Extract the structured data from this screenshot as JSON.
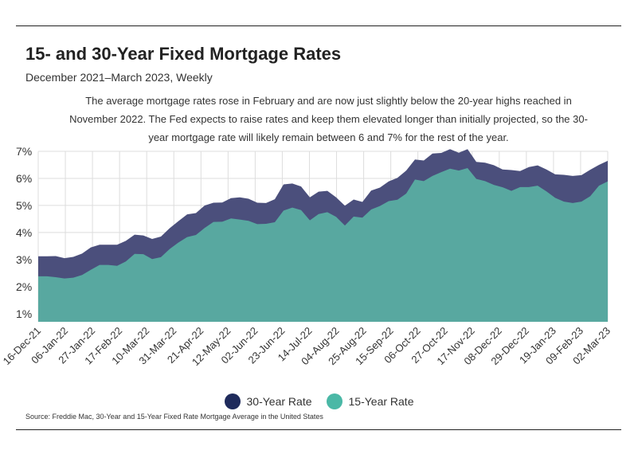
{
  "header": {
    "title": "15- and 30-Year Fixed Mortgage Rates",
    "subtitle": "December 2021–March 2023, Weekly",
    "note": "The average mortgage rates rose in February and are now just slightly below the 20-year highs reached in November 2022. The Fed expects to raise rates and keep them elevated longer than initially projected, so the 30-year mortgage rate will likely remain between 6 and 7% for the rest of the year."
  },
  "footer": {
    "source": "Source:  Freddie Mac, 30-Year  and 15-Year Fixed Rate Mortgage Average in the United States"
  },
  "colors": {
    "series_30": "#4b4f7c",
    "series_15": "#58a8a0",
    "legend_30": "#1f2b5c",
    "legend_15": "#4ab8a6",
    "grid": "#dddddd"
  },
  "chart_data": {
    "type": "area",
    "title": "15- and 30-Year Fixed Mortgage Rates",
    "xlabel": "",
    "ylabel": "",
    "ylim": [
      0.7,
      7.0
    ],
    "yticks": [
      1,
      2,
      3,
      4,
      5,
      6,
      7
    ],
    "ytick_labels": [
      "1%",
      "2%",
      "3%",
      "4%",
      "5%",
      "6%",
      "7%"
    ],
    "grid": true,
    "legend_position": "bottom",
    "xtick_labels": [
      "16-Dec-21",
      "06-Jan-22",
      "27-Jan-22",
      "17-Feb-22",
      "10-Mar-22",
      "31-Mar-22",
      "21-Apr-22",
      "12-May-22",
      "02-Jun-22",
      "23-Jun-22",
      "14-Jul-22",
      "04-Aug-22",
      "25-Aug-22",
      "15-Sep-22",
      "06-Oct-22",
      "27-Oct-22",
      "17-Nov-22",
      "08-Dec-22",
      "29-Dec-22",
      "19-Jan-23",
      "09-Feb-23",
      "02-Mar-23"
    ],
    "series": [
      {
        "name": "30-Year Rate",
        "values": [
          3.12,
          3.12,
          3.13,
          3.05,
          3.1,
          3.22,
          3.45,
          3.55,
          3.55,
          3.55,
          3.69,
          3.92,
          3.89,
          3.76,
          3.85,
          4.16,
          4.42,
          4.67,
          4.72,
          5.0,
          5.1,
          5.11,
          5.27,
          5.3,
          5.25,
          5.1,
          5.09,
          5.23,
          5.78,
          5.81,
          5.7,
          5.3,
          5.51,
          5.54,
          5.3,
          4.99,
          5.22,
          5.13,
          5.55,
          5.66,
          5.89,
          6.02,
          6.29,
          6.7,
          6.66,
          6.92,
          6.94,
          7.08,
          6.95,
          7.08,
          6.61,
          6.58,
          6.49,
          6.33,
          6.31,
          6.27,
          6.42,
          6.48,
          6.33,
          6.15,
          6.13,
          6.09,
          6.12,
          6.32,
          6.5,
          6.65
        ]
      },
      {
        "name": "15-Year Rate",
        "values": [
          2.38,
          2.38,
          2.35,
          2.3,
          2.33,
          2.43,
          2.62,
          2.8,
          2.8,
          2.77,
          2.93,
          3.21,
          3.2,
          3.02,
          3.09,
          3.39,
          3.63,
          3.83,
          3.91,
          4.17,
          4.39,
          4.4,
          4.52,
          4.48,
          4.43,
          4.31,
          4.32,
          4.38,
          4.81,
          4.92,
          4.83,
          4.45,
          4.68,
          4.75,
          4.58,
          4.26,
          4.59,
          4.55,
          4.85,
          4.98,
          5.16,
          5.21,
          5.44,
          5.96,
          5.9,
          6.09,
          6.23,
          6.36,
          6.29,
          6.38,
          5.98,
          5.9,
          5.76,
          5.67,
          5.54,
          5.68,
          5.68,
          5.73,
          5.52,
          5.28,
          5.14,
          5.09,
          5.14,
          5.34,
          5.73,
          5.89
        ]
      }
    ]
  }
}
